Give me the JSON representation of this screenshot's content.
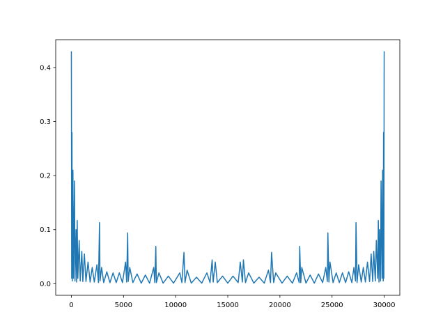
{
  "chart_data": {
    "type": "line",
    "x": [
      0,
      30,
      60,
      90,
      150,
      200,
      300,
      350,
      450,
      500,
      560,
      620,
      750,
      850,
      1000,
      1100,
      1250,
      1400,
      1600,
      1800,
      2000,
      2200,
      2450,
      2600,
      2700,
      2750,
      2900,
      3100,
      3400,
      3700,
      4000,
      4300,
      4600,
      4900,
      5200,
      5300,
      5400,
      5450,
      5600,
      5900,
      6300,
      6700,
      7100,
      7500,
      7900,
      8000,
      8100,
      8150,
      8400,
      8800,
      9300,
      9800,
      10400,
      10600,
      10800,
      10900,
      11100,
      11500,
      12000,
      12500,
      13000,
      13300,
      13500,
      13600,
      13800,
      14000,
      14500,
      15000,
      15499,
      15999,
      16199,
      16399,
      16499,
      16699,
      16999,
      17499,
      17999,
      18499,
      18899,
      19099,
      19199,
      19399,
      19599,
      20199,
      20699,
      21199,
      21599,
      21849,
      21899,
      21999,
      22099,
      22499,
      22899,
      23299,
      23699,
      24099,
      24399,
      24549,
      24599,
      24699,
      24799,
      25099,
      25399,
      25699,
      25999,
      26299,
      26599,
      26899,
      27099,
      27249,
      27299,
      27399,
      27549,
      27799,
      27999,
      28199,
      28399,
      28599,
      28749,
      28899,
      28999,
      29149,
      29249,
      29379,
      29439,
      29499,
      29549,
      29649,
      29699,
      29799,
      29849,
      29909,
      29939,
      29969,
      29999
    ],
    "series": [
      {
        "color": "#1f77b4",
        "values": [
          0.43,
          0.01,
          0.28,
          0.005,
          0.21,
          0.01,
          0.19,
          0.005,
          0.1,
          0.003,
          0.117,
          0.01,
          0.08,
          0.005,
          0.06,
          0.004,
          0.055,
          0.004,
          0.04,
          0.003,
          0.03,
          0.003,
          0.035,
          0.002,
          0.113,
          0.005,
          0.03,
          0.002,
          0.022,
          0.002,
          0.02,
          0.002,
          0.02,
          0.002,
          0.04,
          0.003,
          0.094,
          0.004,
          0.03,
          0.002,
          0.018,
          0.001,
          0.016,
          0.001,
          0.03,
          0.002,
          0.069,
          0.002,
          0.02,
          0.001,
          0.014,
          0.001,
          0.02,
          0.002,
          0.058,
          0.002,
          0.025,
          0.001,
          0.012,
          0.001,
          0.02,
          0.002,
          0.044,
          0.003,
          0.04,
          0.002,
          0.014,
          0.001,
          0.014,
          0.002,
          0.04,
          0.003,
          0.044,
          0.002,
          0.02,
          0.001,
          0.012,
          0.001,
          0.025,
          0.002,
          0.058,
          0.002,
          0.02,
          0.001,
          0.014,
          0.001,
          0.02,
          0.002,
          0.069,
          0.002,
          0.03,
          0.001,
          0.016,
          0.001,
          0.018,
          0.002,
          0.03,
          0.004,
          0.094,
          0.003,
          0.04,
          0.002,
          0.02,
          0.002,
          0.02,
          0.002,
          0.022,
          0.002,
          0.03,
          0.005,
          0.113,
          0.002,
          0.035,
          0.003,
          0.03,
          0.003,
          0.04,
          0.004,
          0.055,
          0.004,
          0.06,
          0.005,
          0.08,
          0.01,
          0.117,
          0.003,
          0.1,
          0.005,
          0.19,
          0.01,
          0.21,
          0.005,
          0.28,
          0.01,
          0.43
        ]
      }
    ],
    "xlim": [
      -1500,
      31499
    ],
    "xticks": [
      0,
      5000,
      10000,
      15000,
      20000,
      25000,
      30000
    ],
    "ylim": [
      -0.0215,
      0.4515
    ],
    "yticks": [
      {
        "value": 0,
        "label": "0.0"
      },
      0.1,
      0.2,
      0.3,
      0.4
    ],
    "grid": false
  }
}
